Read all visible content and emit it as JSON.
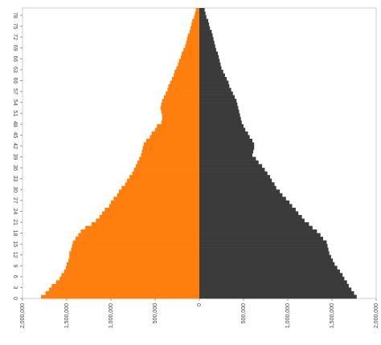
{
  "chart_data": {
    "type": "pyramid",
    "y": [
      0,
      1,
      2,
      3,
      4,
      5,
      6,
      7,
      8,
      9,
      10,
      11,
      12,
      13,
      14,
      15,
      16,
      17,
      18,
      19,
      20,
      21,
      22,
      23,
      24,
      25,
      26,
      27,
      28,
      29,
      30,
      31,
      32,
      33,
      34,
      35,
      36,
      37,
      38,
      39,
      40,
      41,
      42,
      43,
      44,
      45,
      46,
      47,
      48,
      49,
      50,
      51,
      52,
      53,
      54,
      55,
      56,
      57,
      58,
      59,
      60,
      61,
      62,
      63,
      64,
      65,
      66,
      67,
      68,
      69,
      70,
      71,
      72,
      73,
      74,
      75,
      76,
      77,
      78,
      79
    ],
    "series": [
      {
        "color": "#ff7f0e",
        "values": [
          -1790000,
          -1740000,
          -1700000,
          -1670000,
          -1620000,
          -1580000,
          -1560000,
          -1530000,
          -1510000,
          -1500000,
          -1480000,
          -1470000,
          -1470000,
          -1450000,
          -1440000,
          -1430000,
          -1400000,
          -1370000,
          -1340000,
          -1290000,
          -1220000,
          -1170000,
          -1130000,
          -1100000,
          -1070000,
          -1020000,
          -1000000,
          -970000,
          -930000,
          -910000,
          -880000,
          -840000,
          -820000,
          -790000,
          -760000,
          -740000,
          -720000,
          -700000,
          -680000,
          -660000,
          -650000,
          -640000,
          -630000,
          -600000,
          -560000,
          -540000,
          -500000,
          -480000,
          -430000,
          -420000,
          -420000,
          -430000,
          -440000,
          -430000,
          -420000,
          -400000,
          -380000,
          -360000,
          -350000,
          -330000,
          -310000,
          -290000,
          -280000,
          -260000,
          -240000,
          -230000,
          -210000,
          -200000,
          -180000,
          -160000,
          -150000,
          -140000,
          -130000,
          -110000,
          -100000,
          -90000,
          -80000,
          -60000,
          -50000,
          -40000
        ]
      },
      {
        "color": "#3b3b3b",
        "values": [
          1780000,
          1750000,
          1720000,
          1690000,
          1670000,
          1640000,
          1620000,
          1590000,
          1560000,
          1530000,
          1510000,
          1490000,
          1470000,
          1460000,
          1450000,
          1440000,
          1400000,
          1370000,
          1330000,
          1280000,
          1240000,
          1190000,
          1160000,
          1120000,
          1090000,
          1050000,
          1020000,
          980000,
          940000,
          910000,
          870000,
          850000,
          820000,
          800000,
          770000,
          740000,
          710000,
          670000,
          640000,
          600000,
          610000,
          620000,
          620000,
          600000,
          570000,
          550000,
          520000,
          500000,
          480000,
          470000,
          460000,
          450000,
          440000,
          430000,
          420000,
          400000,
          380000,
          360000,
          340000,
          330000,
          310000,
          290000,
          270000,
          250000,
          240000,
          230000,
          220000,
          210000,
          190000,
          180000,
          170000,
          160000,
          150000,
          140000,
          120000,
          110000,
          100000,
          80000,
          70000,
          60000
        ]
      }
    ],
    "xlim": [
      -2000000,
      2000000
    ],
    "xticks": [
      {
        "value": -2000000,
        "label": "2,000,000"
      },
      {
        "value": -1500000,
        "label": "1,500,000"
      },
      {
        "value": -1000000,
        "label": "1,000,000"
      },
      {
        "value": -500000,
        "label": "500,000"
      },
      0,
      {
        "value": 500000,
        "label": "500,000"
      },
      {
        "value": 1000000,
        "label": "1,000,000"
      },
      {
        "value": 1500000,
        "label": "1,500,000"
      },
      {
        "value": 2000000,
        "label": "2,000,000"
      }
    ],
    "ylim": [
      0,
      80
    ],
    "yticks": [
      0,
      3,
      6,
      9,
      12,
      15,
      18,
      21,
      24,
      27,
      30,
      33,
      36,
      39,
      42,
      45,
      48,
      51,
      54,
      57,
      60,
      63,
      66,
      69,
      72,
      75,
      78
    ]
  }
}
